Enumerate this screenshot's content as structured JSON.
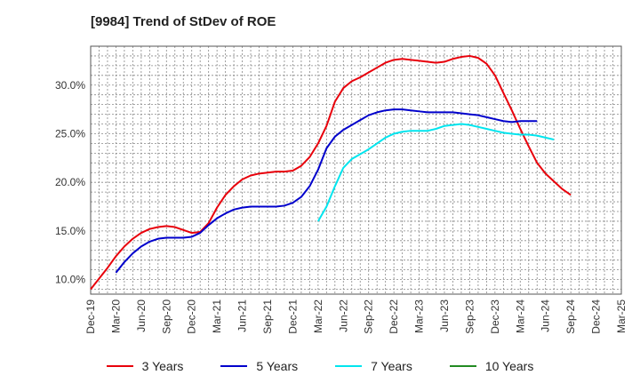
{
  "chart_data": {
    "type": "line",
    "title": "[9984]  Trend of StDev of ROE",
    "xlabel": "",
    "ylabel": "",
    "ylim": [
      8.5,
      34.0
    ],
    "y_ticks": [
      10.0,
      15.0,
      20.0,
      25.0,
      30.0
    ],
    "y_tick_labels": [
      "10.0%",
      "15.0%",
      "20.0%",
      "25.0%",
      "30.0%"
    ],
    "x_tick_labels": [
      "Dec-19",
      "Mar-20",
      "Jun-20",
      "Sep-20",
      "Dec-20",
      "Mar-21",
      "Jun-21",
      "Sep-21",
      "Dec-21",
      "Mar-22",
      "Jun-22",
      "Sep-22",
      "Dec-22",
      "Mar-23",
      "Jun-23",
      "Sep-23",
      "Dec-23",
      "Mar-24",
      "Jun-24",
      "Sep-24",
      "Dec-24",
      "Mar-25"
    ],
    "x_start_month": "Dec-19",
    "grid": true,
    "legend_position": "bottom",
    "series": [
      {
        "name": "3 Years",
        "color": "#e8000b",
        "start_index": 0,
        "values": [
          9.0,
          10.1,
          11.2,
          12.4,
          13.4,
          14.2,
          14.8,
          15.2,
          15.4,
          15.5,
          15.4,
          15.1,
          14.8,
          14.9,
          15.8,
          17.4,
          18.7,
          19.6,
          20.3,
          20.7,
          20.9,
          21.0,
          21.1,
          21.1,
          21.2,
          21.7,
          22.6,
          24.0,
          25.8,
          28.3,
          29.7,
          30.4,
          30.8,
          31.3,
          31.8,
          32.3,
          32.6,
          32.7,
          32.6,
          32.5,
          32.4,
          32.3,
          32.4,
          32.7,
          32.9,
          33.0,
          32.8,
          32.2,
          31.0,
          29.2,
          27.4,
          25.5,
          23.7,
          22.0,
          20.9,
          20.1,
          19.3,
          18.7
        ]
      },
      {
        "name": "5 Years",
        "color": "#0000cc",
        "start_index": 3,
        "values": [
          10.7,
          11.8,
          12.7,
          13.4,
          13.9,
          14.2,
          14.3,
          14.3,
          14.3,
          14.4,
          14.8,
          15.6,
          16.3,
          16.8,
          17.2,
          17.4,
          17.5,
          17.5,
          17.5,
          17.5,
          17.6,
          17.9,
          18.5,
          19.6,
          21.3,
          23.5,
          24.7,
          25.4,
          25.9,
          26.4,
          26.9,
          27.2,
          27.4,
          27.5,
          27.5,
          27.4,
          27.3,
          27.2,
          27.2,
          27.2,
          27.2,
          27.1,
          27.0,
          26.9,
          26.7,
          26.5,
          26.3,
          26.2,
          26.3,
          26.3,
          26.3
        ]
      },
      {
        "name": "7 Years",
        "color": "#00e5ee",
        "start_index": 27,
        "values": [
          16.0,
          17.5,
          19.6,
          21.5,
          22.4,
          22.9,
          23.4,
          24.0,
          24.6,
          25.0,
          25.2,
          25.3,
          25.3,
          25.3,
          25.5,
          25.8,
          25.9,
          26.0,
          25.9,
          25.7,
          25.5,
          25.3,
          25.1,
          25.0,
          24.9,
          24.9,
          24.8,
          24.6,
          24.4
        ]
      },
      {
        "name": "10 Years",
        "color": "#228b22",
        "start_index": 0,
        "values": []
      }
    ]
  }
}
